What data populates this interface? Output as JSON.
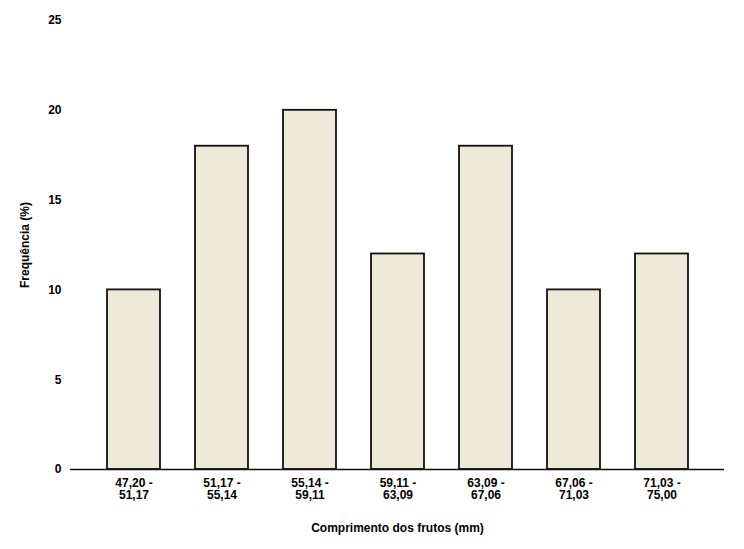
{
  "chart_data": {
    "type": "bar",
    "categories": [
      "47,20 -\n51,17",
      "51,17 -\n55,14",
      "55,14 -\n59,11",
      "59,11 -\n63,09",
      "63,09 -\n67,06",
      "67,06 -\n71,03",
      "71,03 -\n75,00"
    ],
    "values": [
      10,
      18,
      20,
      12,
      18,
      10,
      12
    ],
    "color": "#ede9d9",
    "xlabel": "Comprimento dos frutos (mm)",
    "ylabel": "Frequência (%)",
    "ylim": [
      0,
      25
    ],
    "yticks": [
      0,
      5,
      10,
      15,
      20,
      25
    ],
    "grid": false
  }
}
